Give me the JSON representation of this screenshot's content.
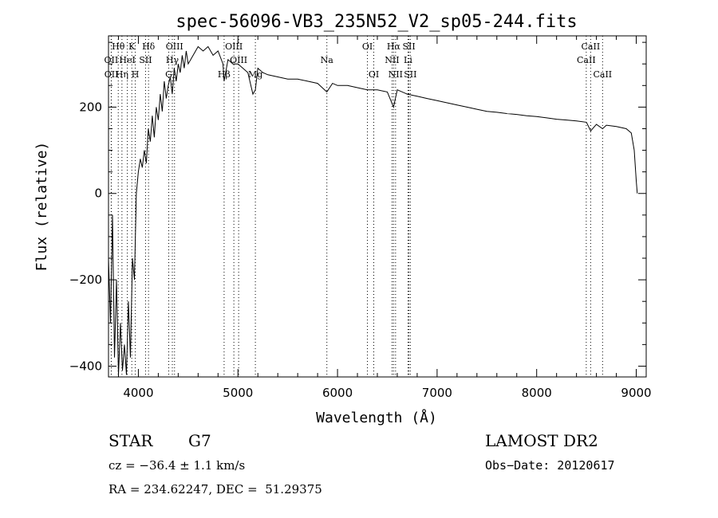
{
  "chart_data": {
    "type": "line",
    "title": "spec-56096-VB3_235N52_V2_sp05-244.fits",
    "xlabel": "Wavelength (Å)",
    "ylabel": "Flux (relative)",
    "xlim": [
      3700,
      9100
    ],
    "ylim": [
      -425,
      365
    ],
    "x_ticks": [
      4000,
      5000,
      6000,
      7000,
      8000,
      9000
    ],
    "y_ticks": [
      -400,
      -200,
      0,
      200
    ],
    "grid": false,
    "series": [
      {
        "x": [
          3700,
          3720,
          3740,
          3760,
          3780,
          3800,
          3820,
          3840,
          3860,
          3880,
          3900,
          3920,
          3940,
          3960,
          3980,
          4000,
          4020,
          4040,
          4060,
          4080,
          4100,
          4120,
          4140,
          4160,
          4180,
          4200,
          4220,
          4240,
          4260,
          4280,
          4300,
          4320,
          4340,
          4360,
          4380,
          4400,
          4420,
          4440,
          4460,
          4480,
          4500,
          4550,
          4600,
          4650,
          4700,
          4750,
          4800,
          4850,
          4861,
          4900,
          4950,
          5000,
          5050,
          5100,
          5150,
          5175,
          5200,
          5250,
          5300,
          5400,
          5500,
          5600,
          5700,
          5800,
          5893,
          5950,
          6000,
          6100,
          6200,
          6300,
          6400,
          6500,
          6563,
          6600,
          6700,
          6800,
          6900,
          7000,
          7100,
          7200,
          7300,
          7400,
          7500,
          7600,
          7700,
          7800,
          7900,
          8000,
          8100,
          8200,
          8300,
          8400,
          8500,
          8542,
          8600,
          8662,
          8700,
          8800,
          8900,
          8950,
          8980,
          9000,
          9010
        ],
        "y": [
          -150,
          -300,
          -50,
          -380,
          -200,
          -420,
          -300,
          -410,
          -350,
          -420,
          -250,
          -380,
          -150,
          -200,
          0,
          50,
          80,
          60,
          100,
          70,
          150,
          120,
          180,
          130,
          200,
          170,
          230,
          190,
          260,
          220,
          250,
          270,
          230,
          290,
          260,
          300,
          280,
          320,
          290,
          330,
          300,
          320,
          340,
          330,
          340,
          320,
          330,
          300,
          260,
          310,
          300,
          300,
          290,
          280,
          230,
          240,
          290,
          280,
          275,
          270,
          265,
          265,
          260,
          255,
          235,
          255,
          250,
          250,
          245,
          240,
          240,
          235,
          200,
          240,
          230,
          225,
          220,
          215,
          210,
          205,
          200,
          195,
          190,
          188,
          185,
          183,
          180,
          178,
          175,
          172,
          170,
          168,
          165,
          145,
          160,
          150,
          158,
          155,
          150,
          140,
          100,
          30,
          0
        ]
      }
    ],
    "line_labels": [
      {
        "label": "Hθ",
        "wave": 3798,
        "row": 0,
        "style": "dotted"
      },
      {
        "label": "K",
        "wave": 3934,
        "row": 0,
        "style": "dotted"
      },
      {
        "label": "Hδ",
        "wave": 4102,
        "row": 0,
        "style": "dotted"
      },
      {
        "label": "OIII",
        "wave": 4363,
        "row": 0,
        "style": "dotted"
      },
      {
        "label": "OIII",
        "wave": 4959,
        "row": 0,
        "style": "dotted"
      },
      {
        "label": "OI",
        "wave": 6300,
        "row": 0,
        "style": "dotted"
      },
      {
        "label": "Hα",
        "wave": 6563,
        "row": 0,
        "style": "dotted"
      },
      {
        "label": "SII",
        "wave": 6717,
        "row": 0,
        "style": "dotted"
      },
      {
        "label": "CaII",
        "wave": 8542,
        "row": 0,
        "style": "dotted"
      },
      {
        "label": "OII",
        "wave": 3727,
        "row": 1,
        "style": "dotted"
      },
      {
        "label": "HeI",
        "wave": 3889,
        "row": 1,
        "style": "dotted"
      },
      {
        "label": "SII",
        "wave": 4072,
        "row": 1,
        "style": "dotted"
      },
      {
        "label": "Hγ",
        "wave": 4341,
        "row": 1,
        "style": "dotted"
      },
      {
        "label": "OIII",
        "wave": 5007,
        "row": 1,
        "style": "dotted"
      },
      {
        "label": "Na",
        "wave": 5893,
        "row": 1,
        "style": "dotted"
      },
      {
        "label": "NII",
        "wave": 6548,
        "row": 1,
        "style": "dotted"
      },
      {
        "label": "Li",
        "wave": 6708,
        "row": 1,
        "style": "dotted"
      },
      {
        "label": "CaII",
        "wave": 8498,
        "row": 1,
        "style": "dotted"
      },
      {
        "label": "OII",
        "wave": 3729,
        "row": 2,
        "style": "dotted"
      },
      {
        "label": "Hη",
        "wave": 3835,
        "row": 2,
        "style": "dotted"
      },
      {
        "label": "H",
        "wave": 3969,
        "row": 2,
        "style": "dotted"
      },
      {
        "label": "G",
        "wave": 4305,
        "row": 2,
        "style": "dotted"
      },
      {
        "label": "Hβ",
        "wave": 4861,
        "row": 2,
        "style": "dotted"
      },
      {
        "label": "Mg",
        "wave": 5175,
        "row": 2,
        "style": "dotted"
      },
      {
        "label": "OI",
        "wave": 6364,
        "row": 2,
        "style": "dotted"
      },
      {
        "label": "NII",
        "wave": 6583,
        "row": 2,
        "style": "dotted"
      },
      {
        "label": "SII",
        "wave": 6731,
        "row": 2,
        "style": "dotted"
      },
      {
        "label": "CaII",
        "wave": 8662,
        "row": 2,
        "style": "dotted"
      }
    ]
  },
  "info": {
    "class_label": "STAR",
    "subclass": "G7",
    "survey": "LAMOST DR2",
    "cz": "cz = −36.4 ± 1.1 km/s",
    "obs_date": "Obs−Date: 20120617",
    "coords": "RA = 234.62247, DEC =  51.29375"
  }
}
